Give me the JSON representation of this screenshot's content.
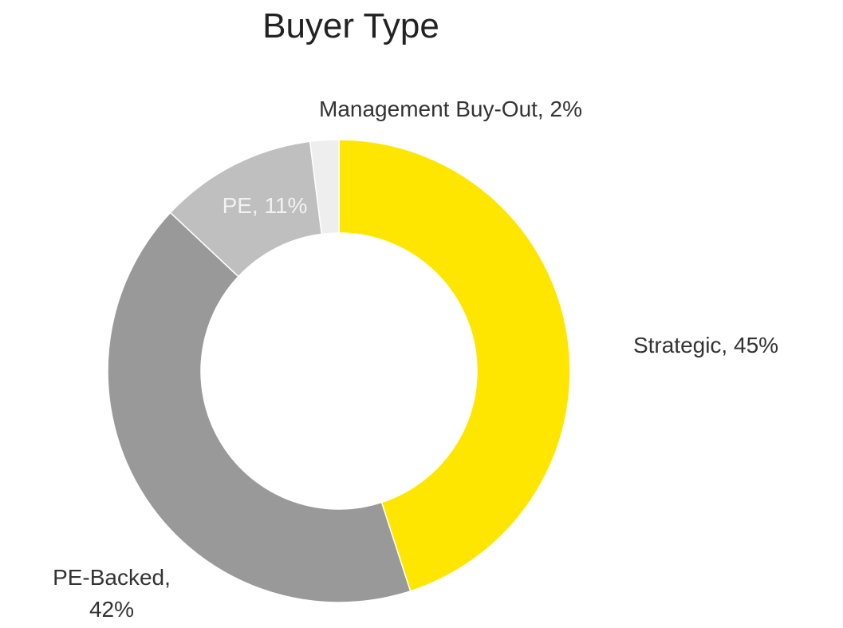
{
  "chart_data": {
    "type": "donut",
    "title": "Buyer Type",
    "values": [
      45,
      42,
      11,
      2
    ],
    "value_labels": [
      "Strategic, 45%",
      "PE-Backed, 42%",
      "PE, 11%",
      "Management Buy-Out, 2%"
    ],
    "colors": [
      "#FFE600",
      "#999999",
      "#BFBFBF",
      "#EEEEEE"
    ]
  }
}
